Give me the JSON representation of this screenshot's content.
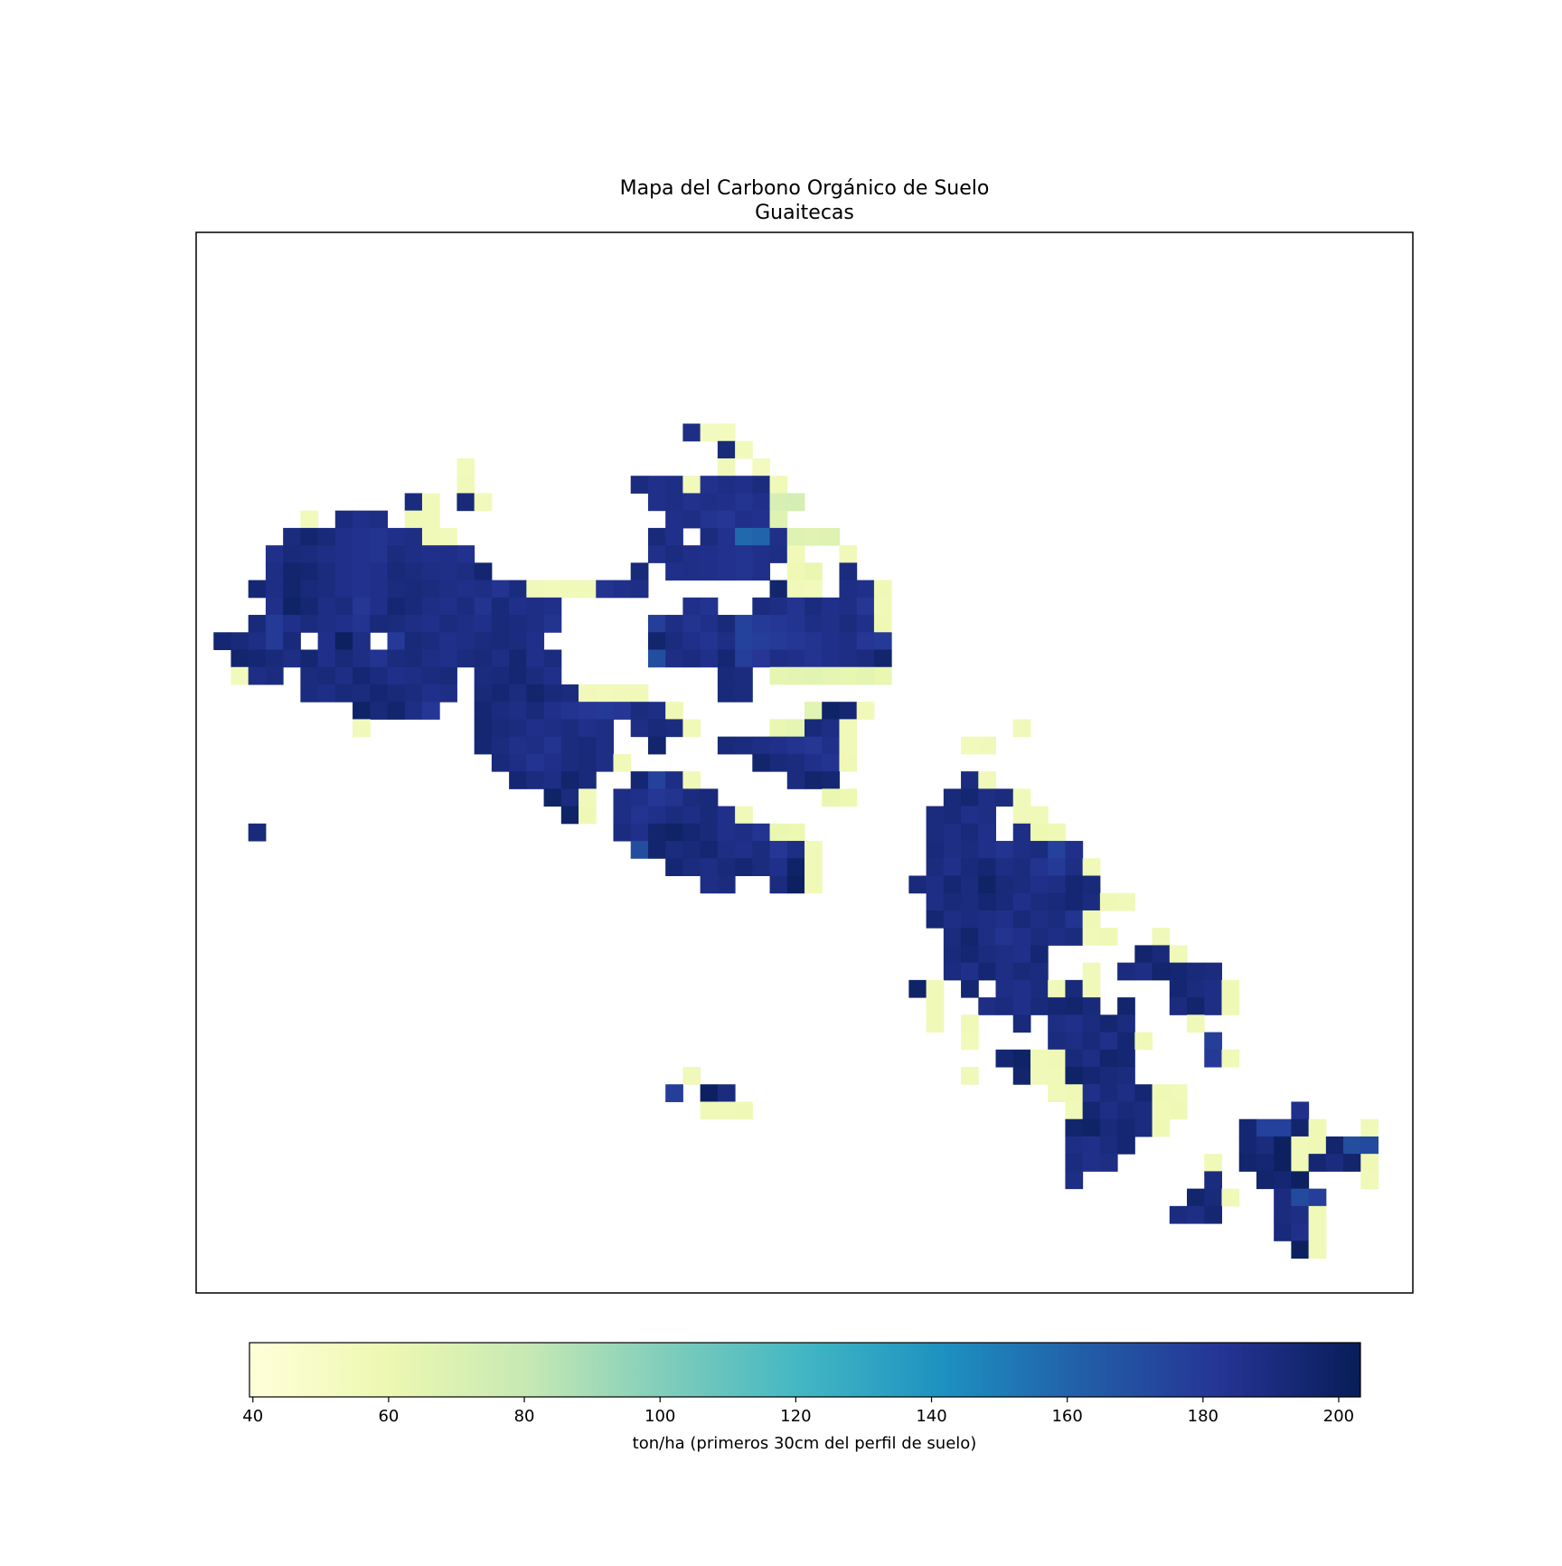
{
  "chart_data": {
    "type": "heatmap",
    "title": "Mapa del Carbono Orgánico de Suelo",
    "subtitle": "Guaitecas",
    "colorbar_label": "ton/ha (primeros 30cm del perfil de suelo)",
    "colormap": "YlGnBu",
    "xlim": [
      0,
      70
    ],
    "ylim": [
      61,
      0
    ],
    "clim": [
      39.5,
      203.2
    ],
    "cticks": [
      40,
      60,
      80,
      100,
      120,
      140,
      160,
      180,
      200
    ],
    "runs": [
      [
        11,
        28,
        [
          188,
          53,
          54
        ]
      ],
      [
        12,
        30,
        [
          192,
          55
        ]
      ],
      [
        13,
        15,
        [
          55
        ]
      ],
      [
        13,
        30,
        [
          56,
          null,
          54
        ]
      ],
      [
        14,
        15,
        [
          56
        ]
      ],
      [
        14,
        25,
        [
          190,
          186,
          188,
          55,
          185,
          188,
          186,
          190,
          57
        ]
      ],
      [
        15,
        12,
        [
          190,
          56,
          null,
          192,
          55
        ]
      ],
      [
        15,
        26,
        [
          186,
          188,
          185,
          187,
          186,
          184,
          186,
          72,
          73
        ]
      ],
      [
        16,
        6,
        [
          55,
          null,
          190,
          186,
          188,
          null,
          58,
          57
        ]
      ],
      [
        16,
        27,
        [
          186,
          188,
          184,
          182,
          186,
          185,
          68
        ]
      ],
      [
        17,
        5,
        [
          190,
          195,
          192,
          186,
          185,
          184,
          186,
          188,
          56,
          55
        ]
      ],
      [
        17,
        26,
        [
          192,
          186,
          null,
          190,
          185,
          158,
          160,
          186,
          68,
          67,
          68
        ]
      ],
      [
        18,
        4,
        [
          186,
          192,
          190,
          188,
          186,
          185,
          184,
          190,
          188,
          186,
          187,
          185
        ]
      ],
      [
        18,
        26,
        [
          186,
          190,
          187,
          186,
          185,
          184,
          186,
          188,
          57,
          null,
          null,
          56
        ]
      ],
      [
        19,
        4,
        [
          188,
          196,
          194,
          190,
          186,
          185,
          186,
          192,
          190,
          188,
          187,
          189,
          195
        ]
      ],
      [
        19,
        25,
        [
          192,
          null,
          186,
          187,
          186,
          185,
          184,
          186,
          null,
          58,
          62,
          null,
          190
        ]
      ],
      [
        20,
        3,
        [
          194,
          188,
          196,
          192,
          190,
          186,
          185,
          186,
          190,
          192,
          190,
          188,
          186,
          188,
          184,
          190
        ]
      ],
      [
        20,
        19,
        [
          56,
          55,
          56,
          57,
          184,
          186,
          188
        ]
      ],
      [
        20,
        33,
        [
          196,
          56,
          55,
          null,
          188,
          186,
          58
        ]
      ],
      [
        21,
        4,
        [
          186,
          198,
          194,
          188,
          190,
          182,
          186,
          194,
          192,
          188,
          186,
          190,
          184,
          192,
          186,
          188,
          186
        ]
      ],
      [
        21,
        28,
        [
          186,
          184
        ]
      ],
      [
        21,
        32,
        [
          190,
          188,
          184,
          190,
          186,
          188,
          182,
          57
        ]
      ],
      [
        22,
        3,
        [
          192,
          180,
          186,
          190,
          188,
          186,
          184,
          192,
          190,
          188,
          186,
          190,
          188,
          186,
          192,
          190,
          188,
          184
        ]
      ],
      [
        22,
        26,
        [
          178,
          188,
          184,
          186,
          192,
          176,
          180,
          182,
          184,
          188,
          186,
          190,
          186,
          58
        ]
      ],
      [
        23,
        1,
        [
          194,
          192,
          188,
          180,
          192,
          null,
          186,
          200,
          188,
          null,
          180,
          192,
          190,
          186,
          188,
          190,
          192,
          190,
          186
        ]
      ],
      [
        23,
        26,
        [
          196,
          190,
          186,
          184,
          188,
          176,
          178,
          180,
          182,
          184,
          186,
          188,
          182,
          180
        ]
      ],
      [
        24,
        2,
        [
          196,
          194,
          192,
          188,
          194,
          186,
          192,
          188,
          184,
          190,
          192,
          188,
          186,
          190,
          192,
          188,
          194,
          186,
          190
        ]
      ],
      [
        24,
        26,
        [
          170,
          188,
          190,
          186,
          194,
          178,
          182,
          188,
          186,
          184,
          186,
          188,
          190,
          196
        ]
      ],
      [
        25,
        2,
        [
          55,
          188,
          190,
          null,
          190,
          192,
          188,
          194,
          190,
          186,
          188,
          190,
          192,
          null,
          190,
          192,
          194,
          190,
          186
        ]
      ],
      [
        25,
        30,
        [
          192,
          190,
          null,
          64,
          65,
          66,
          64,
          63,
          65,
          62
        ]
      ],
      [
        26,
        6,
        [
          190,
          188,
          192,
          190,
          194,
          192,
          190,
          186,
          188,
          null,
          192,
          194,
          190,
          196,
          192,
          190,
          56,
          55,
          57,
          56
        ]
      ],
      [
        26,
        30,
        [
          192,
          190
        ]
      ],
      [
        27,
        9,
        [
          198,
          192,
          196,
          188,
          182,
          null,
          null,
          194,
          190,
          188,
          192,
          186,
          184,
          182,
          180,
          182,
          190,
          188,
          58
        ]
      ],
      [
        27,
        35,
        [
          66,
          198,
          194,
          57
        ]
      ],
      [
        28,
        9,
        [
          56
        ]
      ],
      [
        28,
        16,
        [
          194,
          192,
          190,
          186,
          188,
          190,
          186,
          188,
          null,
          188,
          192,
          190,
          57
        ]
      ],
      [
        28,
        33,
        [
          62,
          64,
          192,
          188,
          57
        ]
      ],
      [
        28,
        47,
        [
          56
        ]
      ],
      [
        29,
        16,
        [
          194,
          190,
          186,
          188,
          184,
          190,
          192,
          188,
          null,
          null,
          196
        ]
      ],
      [
        29,
        30,
        [
          192,
          190,
          188,
          186,
          184,
          182,
          186,
          57
        ]
      ],
      [
        29,
        44,
        [
          55,
          56
        ]
      ],
      [
        30,
        17,
        [
          192,
          188,
          184,
          186,
          190,
          192,
          188,
          57
        ]
      ],
      [
        30,
        32,
        [
          196,
          192,
          190,
          186,
          184,
          58
        ]
      ],
      [
        31,
        18,
        [
          194,
          190,
          188,
          196,
          192
        ]
      ],
      [
        31,
        25,
        [
          194,
          176,
          188,
          57
        ]
      ],
      [
        31,
        34,
        [
          190,
          196,
          194
        ]
      ],
      [
        31,
        44,
        [
          190,
          56
        ]
      ],
      [
        32,
        20,
        [
          198,
          190,
          56,
          null,
          188,
          186,
          182,
          184,
          190,
          192
        ]
      ],
      [
        32,
        36,
        [
          62,
          60
        ]
      ],
      [
        32,
        43,
        [
          192,
          194,
          188,
          190,
          56
        ]
      ],
      [
        33,
        21,
        [
          198,
          58,
          null,
          188,
          184,
          186,
          190,
          188,
          192,
          186,
          57
        ]
      ],
      [
        33,
        42,
        [
          190,
          192,
          186,
          188,
          null,
          56,
          57
        ]
      ],
      [
        34,
        3,
        [
          192
        ]
      ],
      [
        34,
        24,
        [
          190,
          186,
          196,
          198,
          194,
          192,
          186,
          188,
          184,
          62,
          60
        ]
      ],
      [
        34,
        42,
        [
          190,
          188,
          192,
          186,
          null,
          188,
          60,
          58
        ]
      ],
      [
        35,
        25,
        [
          170,
          196,
          190,
          192,
          194,
          188,
          186,
          190,
          182,
          188,
          57
        ]
      ],
      [
        35,
        42,
        [
          192,
          188,
          190,
          186,
          184,
          188,
          190,
          176,
          186
        ]
      ],
      [
        36,
        27,
        [
          194,
          190,
          188,
          192,
          194,
          190,
          186,
          198,
          57
        ]
      ],
      [
        36,
        42,
        [
          190,
          186,
          192,
          194,
          188,
          190,
          184,
          180,
          188,
          57
        ]
      ],
      [
        37,
        29,
        [
          188,
          190,
          null,
          null,
          190,
          200,
          57
        ]
      ],
      [
        37,
        41,
        [
          192,
          188,
          194,
          190,
          198,
          192,
          190,
          186,
          188,
          194,
          192
        ]
      ],
      [
        38,
        42,
        [
          188,
          192,
          190,
          194,
          192,
          186,
          190,
          192,
          194,
          190,
          58,
          57
        ]
      ],
      [
        39,
        42,
        [
          194,
          188,
          190,
          188,
          186,
          192,
          188,
          190,
          184,
          58
        ]
      ],
      [
        40,
        43,
        [
          190,
          196,
          188,
          184,
          186,
          190,
          188,
          190,
          57,
          58,
          null,
          null,
          56
        ]
      ],
      [
        41,
        43,
        [
          192,
          194,
          190,
          188,
          186,
          194
        ]
      ],
      [
        41,
        54,
        [
          196,
          192,
          57
        ]
      ],
      [
        42,
        43,
        [
          190,
          186,
          194,
          188,
          192,
          190,
          null,
          null,
          56,
          null,
          190,
          188,
          196,
          194,
          192,
          190
        ]
      ],
      [
        43,
        41,
        [
          198,
          56,
          null,
          194,
          null,
          188,
          186,
          190,
          56,
          192,
          57
        ]
      ],
      [
        43,
        56,
        [
          194,
          190,
          188,
          58
        ]
      ],
      [
        44,
        42,
        [
          57,
          null,
          null,
          188,
          190,
          186,
          192,
          194,
          196,
          192,
          null,
          196
        ]
      ],
      [
        44,
        56,
        [
          190,
          196,
          188,
          58
        ]
      ],
      [
        45,
        42,
        [
          56,
          null,
          57,
          null,
          null,
          192,
          null,
          188,
          186,
          190,
          194,
          190
        ]
      ],
      [
        45,
        57,
        [
          56
        ]
      ],
      [
        46,
        44,
        [
          55,
          null,
          null,
          null,
          null,
          190,
          188,
          192,
          186,
          194,
          57
        ]
      ],
      [
        46,
        58,
        [
          178
        ]
      ],
      [
        47,
        46,
        [
          194,
          198,
          57,
          58,
          192,
          188,
          196,
          194
        ]
      ],
      [
        47,
        58,
        [
          180,
          57
        ]
      ],
      [
        48,
        28,
        [
          56
        ]
      ],
      [
        48,
        44,
        [
          56,
          null,
          null,
          196,
          56,
          57,
          198,
          194,
          192,
          190
        ]
      ],
      [
        49,
        27,
        [
          178,
          null,
          200,
          190
        ]
      ],
      [
        49,
        49,
        [
          57,
          58,
          186,
          192,
          188,
          194,
          58,
          57
        ]
      ],
      [
        50,
        29,
        [
          57,
          56,
          58
        ]
      ],
      [
        50,
        50,
        [
          57,
          194,
          188,
          192,
          190,
          57,
          58
        ]
      ],
      [
        50,
        63,
        [
          186
        ]
      ],
      [
        51,
        50,
        [
          196,
          198,
          192,
          194,
          190,
          58
        ]
      ],
      [
        51,
        60,
        [
          194,
          176,
          176,
          196,
          58,
          null,
          null,
          57
        ]
      ],
      [
        52,
        50,
        [
          188,
          186,
          190,
          194
        ]
      ],
      [
        52,
        60,
        [
          194,
          190,
          200,
          57,
          58,
          196,
          170,
          172
        ]
      ],
      [
        53,
        50,
        [
          190,
          186,
          188
        ]
      ],
      [
        53,
        58,
        [
          57,
          null,
          196,
          194,
          200,
          57,
          194,
          190,
          196,
          58
        ]
      ],
      [
        54,
        50,
        [
          188
        ]
      ],
      [
        54,
        58,
        [
          190,
          null,
          null,
          196,
          194,
          200,
          null,
          null,
          null,
          57
        ]
      ],
      [
        55,
        57,
        [
          196,
          192,
          57
        ]
      ],
      [
        55,
        62,
        [
          190,
          172,
          178
        ]
      ],
      [
        56,
        56,
        [
          190,
          188,
          194
        ]
      ],
      [
        56,
        62,
        [
          190,
          188,
          57
        ]
      ],
      [
        57,
        62,
        [
          192,
          186,
          57
        ]
      ],
      [
        58,
        63,
        [
          200,
          57
        ]
      ]
    ]
  }
}
